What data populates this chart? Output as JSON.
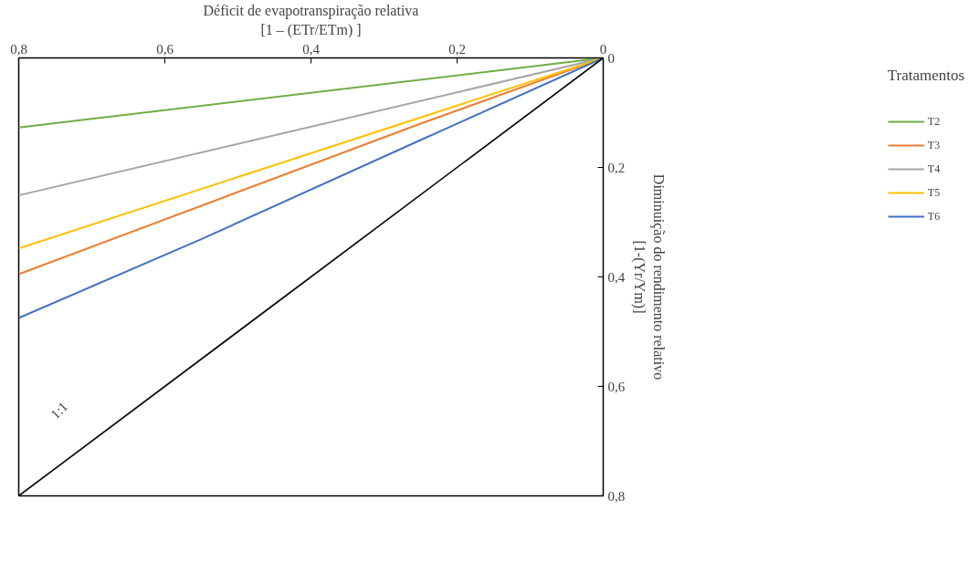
{
  "chart_data": {
    "type": "line",
    "xlabel": "Déficit de evapotranspiração relativa\n[1 – (ETr/ETm) ]",
    "ylabel": "Diminuição do rendimento relativo\n[1-(Yr/Ym)]",
    "legend_title": "Tratamentos",
    "xlim": [
      0.8,
      0
    ],
    "ylim": [
      0.8,
      0
    ],
    "xticks": [
      {
        "value": 0.8,
        "label": "0,8"
      },
      {
        "value": 0.6,
        "label": "0,6"
      },
      {
        "value": 0.4,
        "label": "0,4"
      },
      {
        "value": 0.2,
        "label": "0,2"
      },
      0
    ],
    "yticks": [
      0,
      {
        "value": 0.2,
        "label": "0,2"
      },
      {
        "value": 0.4,
        "label": "0,4"
      },
      {
        "value": 0.6,
        "label": "0,6"
      },
      {
        "value": 0.8,
        "label": "0,8"
      }
    ],
    "series": [
      {
        "name": "T2",
        "color": "#70ad47",
        "x": [
          0,
          0.8
        ],
        "values": [
          0,
          0.127
        ]
      },
      {
        "name": "T3",
        "color": "#ed7d31",
        "x": [
          0,
          0.25,
          0.53,
          0.8
        ],
        "values": [
          0,
          0.12,
          0.26,
          0.395
        ]
      },
      {
        "name": "T4",
        "color": "#a5a5a5",
        "x": [
          0,
          0.8
        ],
        "values": [
          0,
          0.251
        ]
      },
      {
        "name": "T5",
        "color": "#ffc000",
        "x": [
          0,
          0.8
        ],
        "values": [
          0,
          0.348
        ]
      },
      {
        "name": "T6",
        "color": "#4472c4",
        "x": [
          0,
          0.25,
          0.55,
          0.8
        ],
        "values": [
          0,
          0.15,
          0.331,
          0.475
        ]
      },
      {
        "color": "#000000",
        "x": [
          0,
          0.8
        ],
        "values": [
          0,
          0.8
        ]
      }
    ],
    "annotations": [
      "1:1"
    ],
    "legend": "right",
    "grid": false,
    "marker": "none",
    "line_style": "solid"
  }
}
